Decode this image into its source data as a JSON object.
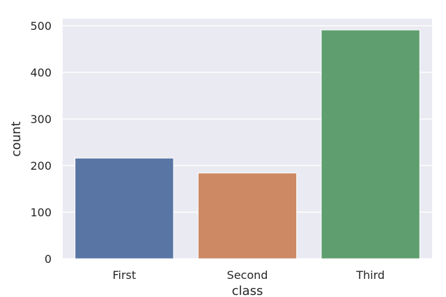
{
  "chart_data": {
    "type": "bar",
    "categories": [
      "First",
      "Second",
      "Third"
    ],
    "values": [
      216,
      184,
      491
    ],
    "colors": [
      "#5975a4",
      "#cc8963",
      "#5f9e6e"
    ],
    "title": "",
    "xlabel": "class",
    "ylabel": "count",
    "ylim": [
      0,
      515
    ],
    "yticks": [
      0,
      100,
      200,
      300,
      400,
      500
    ],
    "grid": true,
    "background": "#eaeaf2"
  }
}
